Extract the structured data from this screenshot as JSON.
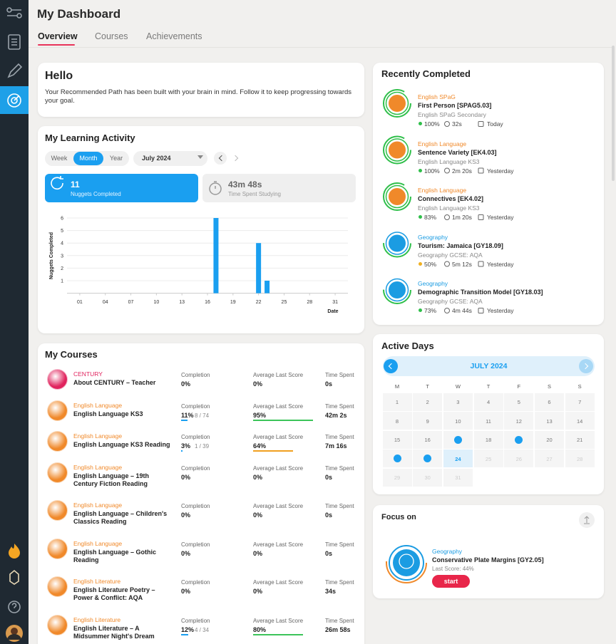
{
  "header": {
    "title": "My Dashboard",
    "tabs": [
      "Overview",
      "Courses",
      "Achievements"
    ],
    "active_tab": 0
  },
  "hello": {
    "title": "Hello",
    "text": "Your Recommended Path has been built with your brain in mind. Follow it to keep progressing towards your goal."
  },
  "learning_activity": {
    "title": "My Learning Activity",
    "periods": [
      "Week",
      "Month",
      "Year"
    ],
    "selected_period": 1,
    "month": "July 2024",
    "stats": [
      {
        "value": "11",
        "label": "Nuggets Completed"
      },
      {
        "value": "43m 48s",
        "label": "Time Spent Studying"
      }
    ],
    "chart_data": {
      "type": "bar",
      "x": [
        17,
        22,
        23
      ],
      "values": [
        6,
        4,
        1
      ],
      "color": "#1a9ff0",
      "xlim": [
        -0.5,
        32.5
      ],
      "xticks": [
        {
          "value": 1,
          "label": "01"
        },
        {
          "value": 4,
          "label": "04"
        },
        {
          "value": 7,
          "label": "07"
        },
        10,
        13,
        16,
        19,
        22,
        25,
        28,
        31
      ],
      "ylim": [
        0,
        6
      ],
      "yticks": [
        1,
        2,
        3,
        4,
        5,
        6
      ],
      "ylabel": "Nuggets Completed",
      "xlabel": "Date",
      "grid": true
    }
  },
  "courses": {
    "title": "My Courses",
    "columns": [
      "Completion",
      "Average Last Score",
      "Time Spent"
    ],
    "items": [
      {
        "subject": "CENTURY",
        "color": "#e0245e",
        "name": "About CENTURY – Teacher",
        "completion": "0%",
        "score": "0%",
        "time": "0s"
      },
      {
        "subject": "English Language",
        "color": "#f0892a",
        "name": "English Language KS3",
        "completion": "11%",
        "progress": "8 / 74",
        "score": "95%",
        "time": "42m 2s"
      },
      {
        "subject": "English Language",
        "color": "#f0892a",
        "name": "English Language KS3 Reading",
        "completion": "3%",
        "progress": "1 / 39",
        "score": "64%",
        "time": "7m 16s"
      },
      {
        "subject": "English Language",
        "color": "#f0892a",
        "name": "English Language – 19th Century Fiction Reading",
        "completion": "0%",
        "score": "0%",
        "time": "0s"
      },
      {
        "subject": "English Language",
        "color": "#f0892a",
        "name": "English Language – Children's Classics Reading",
        "completion": "0%",
        "score": "0%",
        "time": "0s"
      },
      {
        "subject": "English Language",
        "color": "#f0892a",
        "name": "English Language – Gothic Reading",
        "completion": "0%",
        "score": "0%",
        "time": "0s"
      },
      {
        "subject": "English Literature",
        "color": "#f0892a",
        "name": "English Literature Poetry – Power & Conflict: AQA",
        "completion": "0%",
        "score": "0%",
        "time": "34s"
      },
      {
        "subject": "English Literature",
        "color": "#f0892a",
        "name": "English Literature – A Midsummer Night's Dream",
        "completion": "12%",
        "progress": "4 / 34",
        "score": "80%",
        "time": "26m 58s"
      }
    ]
  },
  "recently_completed": {
    "title": "Recently Completed",
    "items": [
      {
        "subject": "English SPaG",
        "color": "#f0892a",
        "name": "First Person [SPAG5.03]",
        "course": "English SPaG Secondary",
        "score": "100%",
        "time": "32s",
        "when": "Today"
      },
      {
        "subject": "English Language",
        "color": "#f0892a",
        "name": "Sentence Variety [EK4.03]",
        "course": "English Language KS3",
        "score": "100%",
        "time": "2m 20s",
        "when": "Yesterday"
      },
      {
        "subject": "English Language",
        "color": "#f0892a",
        "name": "Connectives [EK4.02]",
        "course": "English Language KS3",
        "score": "83%",
        "time": "1m 20s",
        "when": "Yesterday"
      },
      {
        "subject": "Geography",
        "color": "#1b9ce2",
        "name": "Tourism: Jamaica [GY18.09]",
        "course": "Geography GCSE: AQA",
        "score": "50%",
        "time": "5m 12s",
        "when": "Yesterday"
      },
      {
        "subject": "Geography",
        "color": "#1b9ce2",
        "name": "Demographic Transition Model [GY18.03]",
        "course": "Geography GCSE: AQA",
        "score": "73%",
        "time": "4m 44s",
        "when": "Yesterday"
      }
    ]
  },
  "active_days": {
    "title": "Active Days",
    "month": "JULY 2024",
    "weekdays": [
      "M",
      "T",
      "W",
      "T",
      "F",
      "S",
      "S"
    ],
    "first_weekday": 0,
    "days": [
      1,
      2,
      3,
      4,
      5,
      6,
      7,
      8,
      9,
      10,
      11,
      12,
      13,
      14,
      15,
      16,
      null,
      18,
      null,
      20,
      21,
      null,
      null,
      24,
      25,
      26,
      27,
      28,
      29,
      30,
      31
    ],
    "active": [
      17,
      19,
      22,
      23
    ],
    "today": 24
  },
  "focus": {
    "title": "Focus on",
    "subject": "Geography",
    "color": "#1b9ce2",
    "name": "Conservative Plate Margins [GY2.05]",
    "score": "Last Score: 44%",
    "button": "start"
  }
}
